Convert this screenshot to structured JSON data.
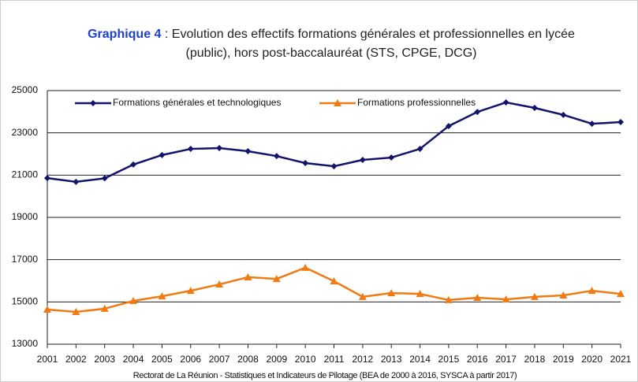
{
  "chart_data": {
    "type": "line",
    "title_label": "Graphique 4",
    "title": ": Evolution des effectifs formations générales et professionnelles en lycée (public), hors post-baccalauréat (STS, CPGE, DCG)",
    "x": [
      2001,
      2002,
      2003,
      2004,
      2005,
      2006,
      2007,
      2008,
      2009,
      2010,
      2011,
      2012,
      2013,
      2014,
      2015,
      2016,
      2017,
      2018,
      2019,
      2020,
      2021
    ],
    "xlim": [
      2001,
      2021
    ],
    "xticks": [
      2001,
      2002,
      2003,
      2004,
      2005,
      2006,
      2007,
      2008,
      2009,
      2010,
      2011,
      2012,
      2013,
      2014,
      2015,
      2016,
      2017,
      2018,
      2019,
      2020,
      2021
    ],
    "ylim": [
      13000,
      25000
    ],
    "yticks": [
      13000,
      15000,
      17000,
      19000,
      21000,
      23000,
      25000
    ],
    "grid": true,
    "legend": "top",
    "series": [
      {
        "name": "Formations générales et technologiques",
        "color": "#13136e",
        "marker": "diamond",
        "values": [
          20860,
          20680,
          20850,
          21500,
          21950,
          22240,
          22280,
          22130,
          21900,
          21570,
          21420,
          21720,
          21830,
          22240,
          23320,
          23990,
          24440,
          24180,
          23850,
          23430,
          23510
        ]
      },
      {
        "name": "Formations professionnelles",
        "color": "#f07b12",
        "marker": "triangle",
        "values": [
          14640,
          14530,
          14680,
          15050,
          15270,
          15530,
          15830,
          16170,
          16090,
          16620,
          15980,
          15240,
          15420,
          15380,
          15090,
          15200,
          15120,
          15240,
          15310,
          15530,
          15380
        ]
      }
    ],
    "source": "Rectorat de La Réunion - Statistiques et Indicateurs de Pilotage (BEA de 2000 à 2016, SYSCA à partir 2017)"
  }
}
